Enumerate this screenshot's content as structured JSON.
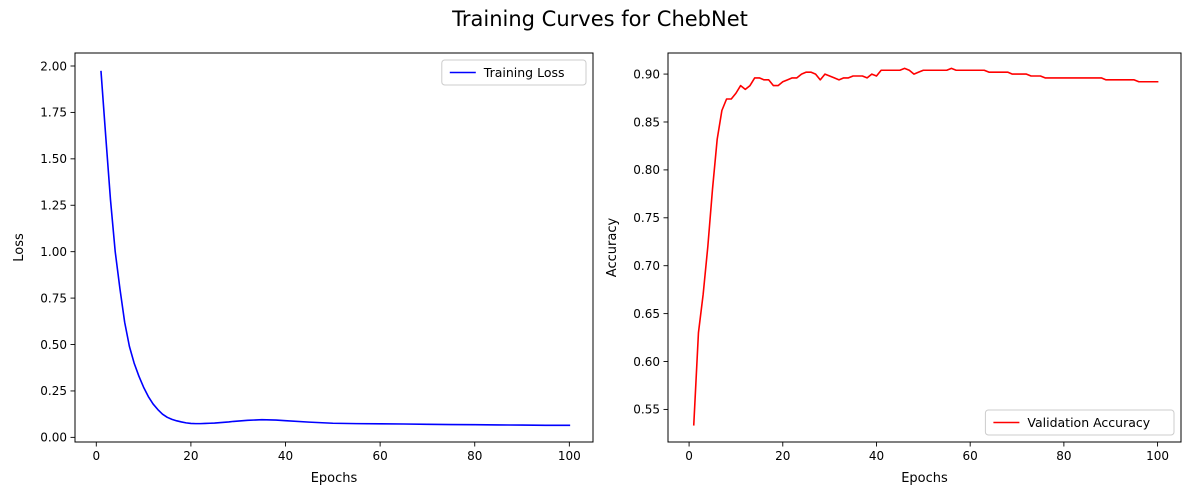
{
  "figure": {
    "title": "Training Curves for ChebNet"
  },
  "chart_data": [
    {
      "type": "line",
      "xlabel": "Epochs",
      "ylabel": "Loss",
      "xlim": [
        -4.5,
        105
      ],
      "ylim": [
        -0.025,
        2.07
      ],
      "xticks": [
        0,
        20,
        40,
        60,
        80,
        100
      ],
      "yticks": [
        0.0,
        0.25,
        0.5,
        0.75,
        1.0,
        1.25,
        1.5,
        1.75,
        2.0
      ],
      "ytick_labels": [
        "0.00",
        "0.25",
        "0.50",
        "0.75",
        "1.00",
        "1.25",
        "1.50",
        "1.75",
        "2.00"
      ],
      "legend_position": "top-right",
      "series": [
        {
          "name": "Training Loss",
          "color": "#0000ff",
          "x": [
            1,
            2,
            3,
            4,
            5,
            6,
            7,
            8,
            9,
            10,
            11,
            12,
            13,
            14,
            15,
            16,
            17,
            18,
            19,
            20,
            21,
            22,
            23,
            24,
            25,
            26,
            27,
            28,
            29,
            30,
            32,
            35,
            38,
            40,
            45,
            50,
            55,
            60,
            65,
            70,
            75,
            80,
            85,
            90,
            95,
            100
          ],
          "y": [
            1.97,
            1.62,
            1.28,
            1.0,
            0.8,
            0.62,
            0.49,
            0.4,
            0.33,
            0.27,
            0.22,
            0.18,
            0.15,
            0.125,
            0.108,
            0.097,
            0.089,
            0.083,
            0.078,
            0.075,
            0.074,
            0.074,
            0.075,
            0.076,
            0.077,
            0.079,
            0.081,
            0.083,
            0.086,
            0.088,
            0.092,
            0.095,
            0.093,
            0.09,
            0.082,
            0.076,
            0.074,
            0.073,
            0.072,
            0.07,
            0.069,
            0.068,
            0.067,
            0.066,
            0.065,
            0.065
          ]
        }
      ]
    },
    {
      "type": "line",
      "xlabel": "Epochs",
      "ylabel": "Accuracy",
      "xlim": [
        -4.5,
        105
      ],
      "ylim": [
        0.516,
        0.922
      ],
      "xticks": [
        0,
        20,
        40,
        60,
        80,
        100
      ],
      "yticks": [
        0.55,
        0.6,
        0.65,
        0.7,
        0.75,
        0.8,
        0.85,
        0.9
      ],
      "ytick_labels": [
        "0.55",
        "0.60",
        "0.65",
        "0.70",
        "0.75",
        "0.80",
        "0.85",
        "0.90"
      ],
      "legend_position": "bottom-right",
      "series": [
        {
          "name": "Validation Accuracy",
          "color": "#ff0000",
          "x": [
            1,
            2,
            3,
            4,
            5,
            6,
            7,
            8,
            9,
            10,
            11,
            12,
            13,
            14,
            15,
            16,
            17,
            18,
            19,
            20,
            21,
            22,
            23,
            24,
            25,
            26,
            27,
            28,
            29,
            30,
            31,
            32,
            33,
            34,
            35,
            36,
            37,
            38,
            39,
            40,
            41,
            42,
            43,
            44,
            45,
            46,
            47,
            48,
            49,
            50,
            51,
            52,
            53,
            54,
            55,
            56,
            57,
            58,
            59,
            60,
            61,
            62,
            63,
            64,
            65,
            66,
            67,
            68,
            69,
            70,
            71,
            72,
            73,
            74,
            75,
            76,
            77,
            78,
            79,
            80,
            81,
            82,
            83,
            84,
            85,
            86,
            87,
            88,
            89,
            90,
            91,
            92,
            93,
            94,
            95,
            96,
            97,
            98,
            99,
            100
          ],
          "y": [
            0.534,
            0.63,
            0.67,
            0.72,
            0.78,
            0.832,
            0.862,
            0.874,
            0.874,
            0.88,
            0.888,
            0.884,
            0.888,
            0.896,
            0.896,
            0.894,
            0.894,
            0.888,
            0.888,
            0.892,
            0.894,
            0.896,
            0.896,
            0.9,
            0.902,
            0.902,
            0.9,
            0.894,
            0.9,
            0.898,
            0.896,
            0.894,
            0.896,
            0.896,
            0.898,
            0.898,
            0.898,
            0.896,
            0.9,
            0.898,
            0.904,
            0.904,
            0.904,
            0.904,
            0.904,
            0.906,
            0.904,
            0.9,
            0.902,
            0.904,
            0.904,
            0.904,
            0.904,
            0.904,
            0.904,
            0.906,
            0.904,
            0.904,
            0.904,
            0.904,
            0.904,
            0.904,
            0.904,
            0.902,
            0.902,
            0.902,
            0.902,
            0.902,
            0.9,
            0.9,
            0.9,
            0.9,
            0.898,
            0.898,
            0.898,
            0.896,
            0.896,
            0.896,
            0.896,
            0.896,
            0.896,
            0.896,
            0.896,
            0.896,
            0.896,
            0.896,
            0.896,
            0.896,
            0.894,
            0.894,
            0.894,
            0.894,
            0.894,
            0.894,
            0.894,
            0.892,
            0.892,
            0.892,
            0.892,
            0.892
          ]
        }
      ]
    }
  ]
}
